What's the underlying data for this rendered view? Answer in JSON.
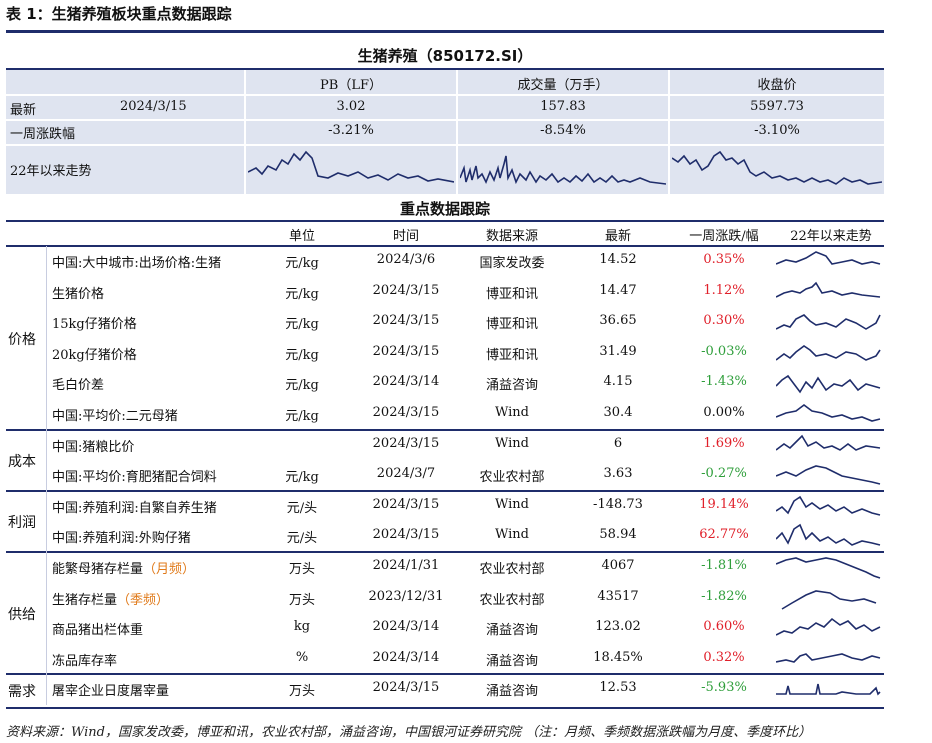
{
  "caption": "表 1：生猪养殖板块重点数据跟踪",
  "sector": {
    "title": "生猪养殖（850172.SI）",
    "col_headers": [
      "PB（LF）",
      "成交量（万手）",
      "收盘价"
    ],
    "latest_label": "最新",
    "latest_date": "2024/3/15",
    "latest_values": [
      "3.02",
      "157.83",
      "5597.73"
    ],
    "week_label": "一周涨跌幅",
    "week_values": [
      "-3.21%",
      "-8.54%",
      "-3.10%"
    ],
    "trend_label": "22年以来走势"
  },
  "key": {
    "title": "重点数据跟踪",
    "headers": [
      "单位",
      "时间",
      "数据来源",
      "最新",
      "一周涨跌/幅",
      "22年以来走势"
    ],
    "groups": [
      {
        "label": "价格",
        "rows": [
          {
            "name": "中国:大中城市:出场价格:生猪",
            "unit": "元/kg",
            "date": "2024/3/6",
            "source": "国家发改委",
            "latest": "14.52",
            "change": "0.35%",
            "sign": "pos"
          },
          {
            "name": "生猪价格",
            "unit": "元/kg",
            "date": "2024/3/15",
            "source": "博亚和讯",
            "latest": "14.47",
            "change": "1.12%",
            "sign": "pos"
          },
          {
            "name": "15kg仔猪价格",
            "unit": "元/kg",
            "date": "2024/3/15",
            "source": "博亚和讯",
            "latest": "36.65",
            "change": "0.30%",
            "sign": "pos"
          },
          {
            "name": "20kg仔猪价格",
            "unit": "元/kg",
            "date": "2024/3/15",
            "source": "博亚和讯",
            "latest": "31.49",
            "change": "-0.03%",
            "sign": "neg"
          },
          {
            "name": "毛白价差",
            "unit": "元/kg",
            "date": "2024/3/14",
            "source": "涌益咨询",
            "latest": "4.15",
            "change": "-1.43%",
            "sign": "neg"
          },
          {
            "name": "中国:平均价:二元母猪",
            "unit": "元/kg",
            "date": "2024/3/15",
            "source": "Wind",
            "latest": "30.4",
            "change": "0.00%",
            "sign": "neu"
          }
        ]
      },
      {
        "label": "成本",
        "rows": [
          {
            "name": "中国:猪粮比价",
            "unit": "",
            "date": "2024/3/15",
            "source": "Wind",
            "latest": "6",
            "change": "1.69%",
            "sign": "pos"
          },
          {
            "name": "中国:平均价:育肥猪配合饲料",
            "unit": "元/kg",
            "date": "2024/3/7",
            "source": "农业农村部",
            "latest": "3.63",
            "change": "-0.27%",
            "sign": "neg"
          }
        ]
      },
      {
        "label": "利润",
        "rows": [
          {
            "name": "中国:养殖利润:自繁自养生猪",
            "unit": "元/头",
            "date": "2024/3/15",
            "source": "Wind",
            "latest": "-148.73",
            "change": "19.14%",
            "sign": "pos"
          },
          {
            "name": "中国:养殖利润:外购仔猪",
            "unit": "元/头",
            "date": "2024/3/15",
            "source": "Wind",
            "latest": "58.94",
            "change": "62.77%",
            "sign": "pos"
          }
        ]
      },
      {
        "label": "供给",
        "rows": [
          {
            "name": "能繁母猪存栏量",
            "freq": "（月频）",
            "unit": "万头",
            "date": "2024/1/31",
            "source": "农业农村部",
            "latest": "4067",
            "change": "-1.81%",
            "sign": "neg"
          },
          {
            "name": "生猪存栏量",
            "freq": "（季频）",
            "unit": "万头",
            "date": "2023/12/31",
            "source": "农业农村部",
            "latest": "43517",
            "change": "-1.82%",
            "sign": "neg"
          },
          {
            "name": "商品猪出栏体重",
            "unit": "kg",
            "date": "2024/3/14",
            "source": "涌益咨询",
            "latest": "123.02",
            "change": "0.60%",
            "sign": "pos"
          },
          {
            "name": "冻品库存率",
            "unit": "%",
            "date": "2024/3/14",
            "source": "涌益咨询",
            "latest": "18.45%",
            "change": "0.32%",
            "sign": "pos"
          }
        ]
      },
      {
        "label": "需求",
        "rows": [
          {
            "name": "屠宰企业日度屠宰量",
            "unit": "万头",
            "date": "2024/3/15",
            "source": "涌益咨询",
            "latest": "12.53",
            "change": "-5.93%",
            "sign": "neg"
          }
        ]
      }
    ]
  },
  "footer": "资料来源：Wind，国家发改委，博亚和讯，农业农村部，涌益咨询，中国银河证券研究院 （注：月频、季频数据涨跌幅为月度、季度环比）",
  "colors": {
    "accent": "#1f2d6b",
    "row_bg": "#dfe4f0",
    "positive": "#e0202a",
    "negative": "#2e9e3a",
    "freq": "#e07a1a"
  }
}
